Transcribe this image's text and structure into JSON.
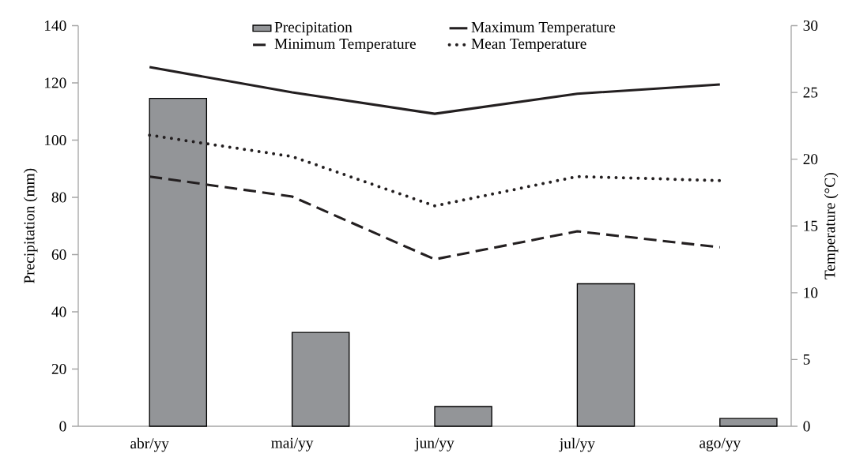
{
  "chart_data": {
    "type": "bar",
    "categories": [
      "abr/yy",
      "mai/yy",
      "jun/yy",
      "jul/yy",
      "ago/yy"
    ],
    "ylabel": "Precipitation (mm)",
    "y2label": "Temperature (°C)",
    "ylim": [
      0,
      140
    ],
    "yticks": [
      0,
      20,
      40,
      60,
      80,
      100,
      120,
      140
    ],
    "y2lim": [
      0,
      30
    ],
    "y2ticks": [
      0,
      5,
      10,
      15,
      20,
      25,
      30
    ],
    "legend": "top",
    "grid": false,
    "series": [
      {
        "name": "Precipitation",
        "color": "#939598",
        "values": [
          114.6,
          32.8,
          6.9,
          49.8,
          2.7
        ]
      },
      {
        "name": "Maximum Temperature",
        "type": "line",
        "axis": "y2",
        "color": "#231f20",
        "line_style": "solid",
        "values": [
          26.9,
          25.0,
          23.4,
          24.9,
          25.6
        ]
      },
      {
        "name": "Minimum Temperature",
        "type": "line",
        "axis": "y2",
        "color": "#231f20",
        "line_style": "dashed",
        "values": [
          18.7,
          17.2,
          12.5,
          14.6,
          13.4
        ]
      },
      {
        "name": "Mean Temperature",
        "type": "line",
        "axis": "y2",
        "color": "#231f20",
        "line_style": "dotted",
        "values": [
          21.8,
          20.2,
          16.5,
          18.7,
          18.4
        ]
      }
    ]
  }
}
